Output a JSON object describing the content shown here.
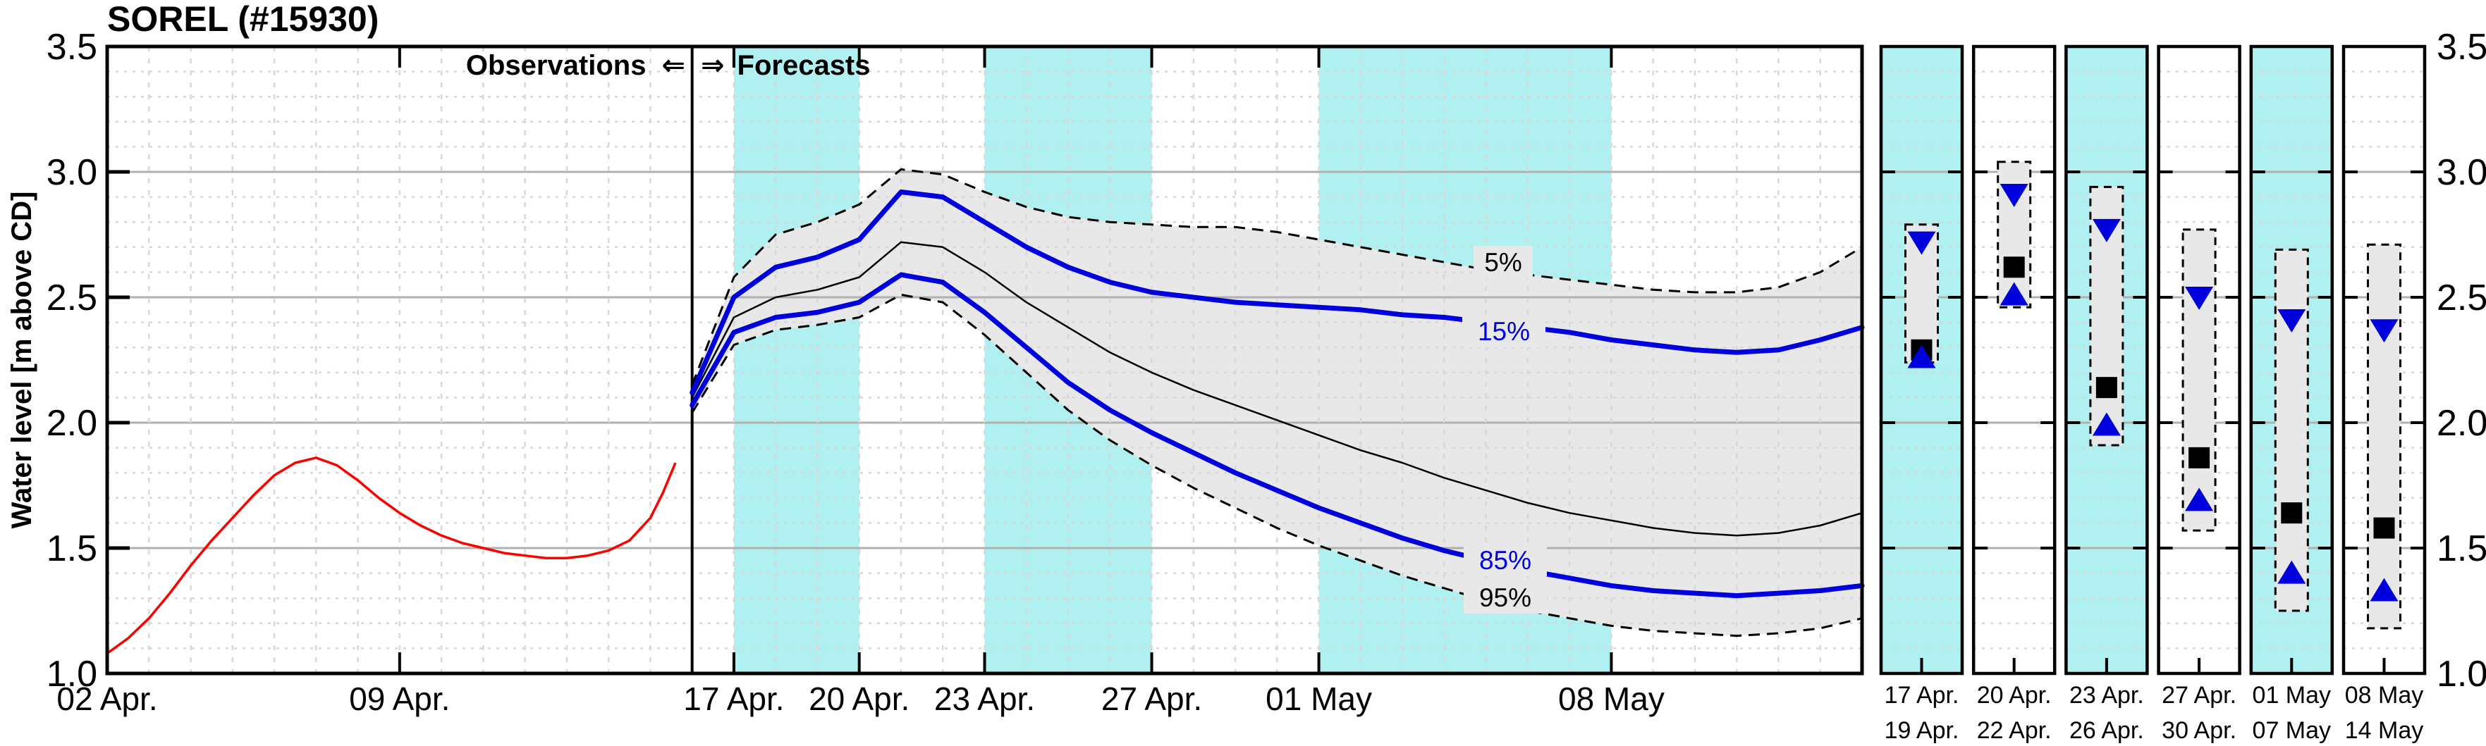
{
  "title": "SOREL (#15930)",
  "y_axis": {
    "title": "Water level [m above CD]"
  },
  "sections": {
    "observations_label": "Observations",
    "left_arrow": "⇐",
    "right_arrow": "⇒",
    "forecasts_label": "Forecasts"
  },
  "percentile_labels": {
    "p5": "5%",
    "p15": "15%",
    "p85": "85%",
    "p95": "95%"
  },
  "colors": {
    "observed": "#ff0000",
    "percentile_blue": "#0000dd",
    "median": "#000000",
    "band_fill": "#e8e8e8",
    "highlight_band": "#b0f0f0",
    "grid_minor": "#d8d8d8",
    "grid_major": "#b0b0b0",
    "axis": "#000000"
  },
  "chart_data": {
    "type": "line",
    "title": "SOREL (#15930)",
    "xlabel": "",
    "ylabel": "Water level [m above CD]",
    "ylim": [
      1.0,
      3.5
    ],
    "xlim_days": [
      0,
      42
    ],
    "x_unit": "days since 02 Apr",
    "grid": "on",
    "legend": "inline labels",
    "forecast_start_day": 14,
    "y_ticks": [
      {
        "value": 3.5,
        "label": "3.5"
      },
      {
        "value": 3.0,
        "label": "3.0"
      },
      {
        "value": 2.5,
        "label": "2.5"
      },
      {
        "value": 2.0,
        "label": "2.0"
      },
      {
        "value": 1.5,
        "label": "1.5"
      },
      {
        "value": 1.0,
        "label": "1.0"
      }
    ],
    "x_ticks": [
      {
        "day": 0,
        "label": "02 Apr."
      },
      {
        "day": 7,
        "label": "09 Apr."
      },
      {
        "day": 15,
        "label": "17 Apr."
      },
      {
        "day": 18,
        "label": "20 Apr."
      },
      {
        "day": 21,
        "label": "23 Apr."
      },
      {
        "day": 25,
        "label": "27 Apr."
      },
      {
        "day": 29,
        "label": "01 May"
      },
      {
        "day": 36,
        "label": "08 May"
      }
    ],
    "highlight_bands": [
      [
        15,
        18
      ],
      [
        21,
        25
      ],
      [
        29,
        36
      ]
    ],
    "observed": {
      "name": "Observations",
      "x": [
        0,
        0.5,
        1,
        1.5,
        2,
        2.5,
        3,
        3.5,
        4,
        4.5,
        5,
        5.5,
        6,
        6.5,
        7,
        7.5,
        8,
        8.5,
        9,
        9.5,
        10,
        10.5,
        11,
        11.5,
        12,
        12.5,
        13,
        13.3,
        13.6
      ],
      "y": [
        1.08,
        1.14,
        1.22,
        1.32,
        1.43,
        1.53,
        1.62,
        1.71,
        1.79,
        1.84,
        1.86,
        1.83,
        1.77,
        1.7,
        1.64,
        1.59,
        1.55,
        1.52,
        1.5,
        1.48,
        1.47,
        1.46,
        1.46,
        1.47,
        1.49,
        1.53,
        1.62,
        1.72,
        1.84
      ]
    },
    "forecast": {
      "x": [
        14,
        15,
        16,
        17,
        18,
        19,
        20,
        21,
        22,
        23,
        24,
        25,
        26,
        27,
        28,
        29,
        30,
        31,
        32,
        33,
        34,
        35,
        36,
        37,
        38,
        39,
        40,
        41,
        42
      ],
      "series": [
        {
          "name": "5%",
          "style": "dashed-black",
          "values": [
            2.15,
            2.58,
            2.75,
            2.8,
            2.87,
            3.01,
            2.99,
            2.92,
            2.86,
            2.82,
            2.8,
            2.79,
            2.78,
            2.78,
            2.76,
            2.73,
            2.7,
            2.67,
            2.64,
            2.61,
            2.59,
            2.57,
            2.55,
            2.53,
            2.52,
            2.52,
            2.54,
            2.6,
            2.7
          ]
        },
        {
          "name": "15%",
          "style": "thick-blue",
          "values": [
            2.12,
            2.5,
            2.62,
            2.66,
            2.73,
            2.92,
            2.9,
            2.8,
            2.7,
            2.62,
            2.56,
            2.52,
            2.5,
            2.48,
            2.47,
            2.46,
            2.45,
            2.43,
            2.42,
            2.4,
            2.38,
            2.36,
            2.33,
            2.31,
            2.29,
            2.28,
            2.29,
            2.33,
            2.38
          ]
        },
        {
          "name": "median",
          "style": "thin-black",
          "values": [
            2.1,
            2.42,
            2.5,
            2.53,
            2.58,
            2.72,
            2.7,
            2.6,
            2.48,
            2.38,
            2.28,
            2.2,
            2.13,
            2.07,
            2.01,
            1.95,
            1.89,
            1.84,
            1.78,
            1.73,
            1.68,
            1.64,
            1.61,
            1.58,
            1.56,
            1.55,
            1.56,
            1.59,
            1.64
          ]
        },
        {
          "name": "85%",
          "style": "thick-blue",
          "values": [
            2.07,
            2.36,
            2.42,
            2.44,
            2.48,
            2.59,
            2.56,
            2.44,
            2.3,
            2.16,
            2.05,
            1.96,
            1.88,
            1.8,
            1.73,
            1.66,
            1.6,
            1.54,
            1.49,
            1.45,
            1.41,
            1.38,
            1.35,
            1.33,
            1.32,
            1.31,
            1.32,
            1.33,
            1.35
          ]
        },
        {
          "name": "95%",
          "style": "dashed-black",
          "values": [
            2.04,
            2.31,
            2.37,
            2.39,
            2.42,
            2.51,
            2.48,
            2.35,
            2.2,
            2.05,
            1.93,
            1.83,
            1.74,
            1.66,
            1.58,
            1.51,
            1.45,
            1.39,
            1.34,
            1.29,
            1.25,
            1.22,
            1.19,
            1.17,
            1.16,
            1.15,
            1.16,
            1.18,
            1.22
          ]
        }
      ]
    },
    "mini_panels": [
      {
        "date_start": "17 Apr.",
        "date_end": "19 Apr.",
        "highlight": true,
        "range_box": [
          2.24,
          2.79
        ],
        "upper_triangle": 2.72,
        "median_square": 2.29,
        "lower_triangle": 2.26
      },
      {
        "date_start": "20 Apr.",
        "date_end": "22 Apr.",
        "highlight": false,
        "range_box": [
          2.46,
          3.04
        ],
        "upper_triangle": 2.91,
        "median_square": 2.62,
        "lower_triangle": 2.51
      },
      {
        "date_start": "23 Apr.",
        "date_end": "26 Apr.",
        "highlight": true,
        "range_box": [
          1.91,
          2.94
        ],
        "upper_triangle": 2.77,
        "median_square": 2.14,
        "lower_triangle": 1.99
      },
      {
        "date_start": "27 Apr.",
        "date_end": "30 Apr.",
        "highlight": false,
        "range_box": [
          1.57,
          2.77
        ],
        "upper_triangle": 2.5,
        "median_square": 1.86,
        "lower_triangle": 1.69
      },
      {
        "date_start": "01 May",
        "date_end": "07 May",
        "highlight": true,
        "range_box": [
          1.25,
          2.69
        ],
        "upper_triangle": 2.41,
        "median_square": 1.64,
        "lower_triangle": 1.4
      },
      {
        "date_start": "08 May",
        "date_end": "14 May",
        "highlight": false,
        "range_box": [
          1.18,
          2.71
        ],
        "upper_triangle": 2.37,
        "median_square": 1.58,
        "lower_triangle": 1.33
      }
    ]
  }
}
